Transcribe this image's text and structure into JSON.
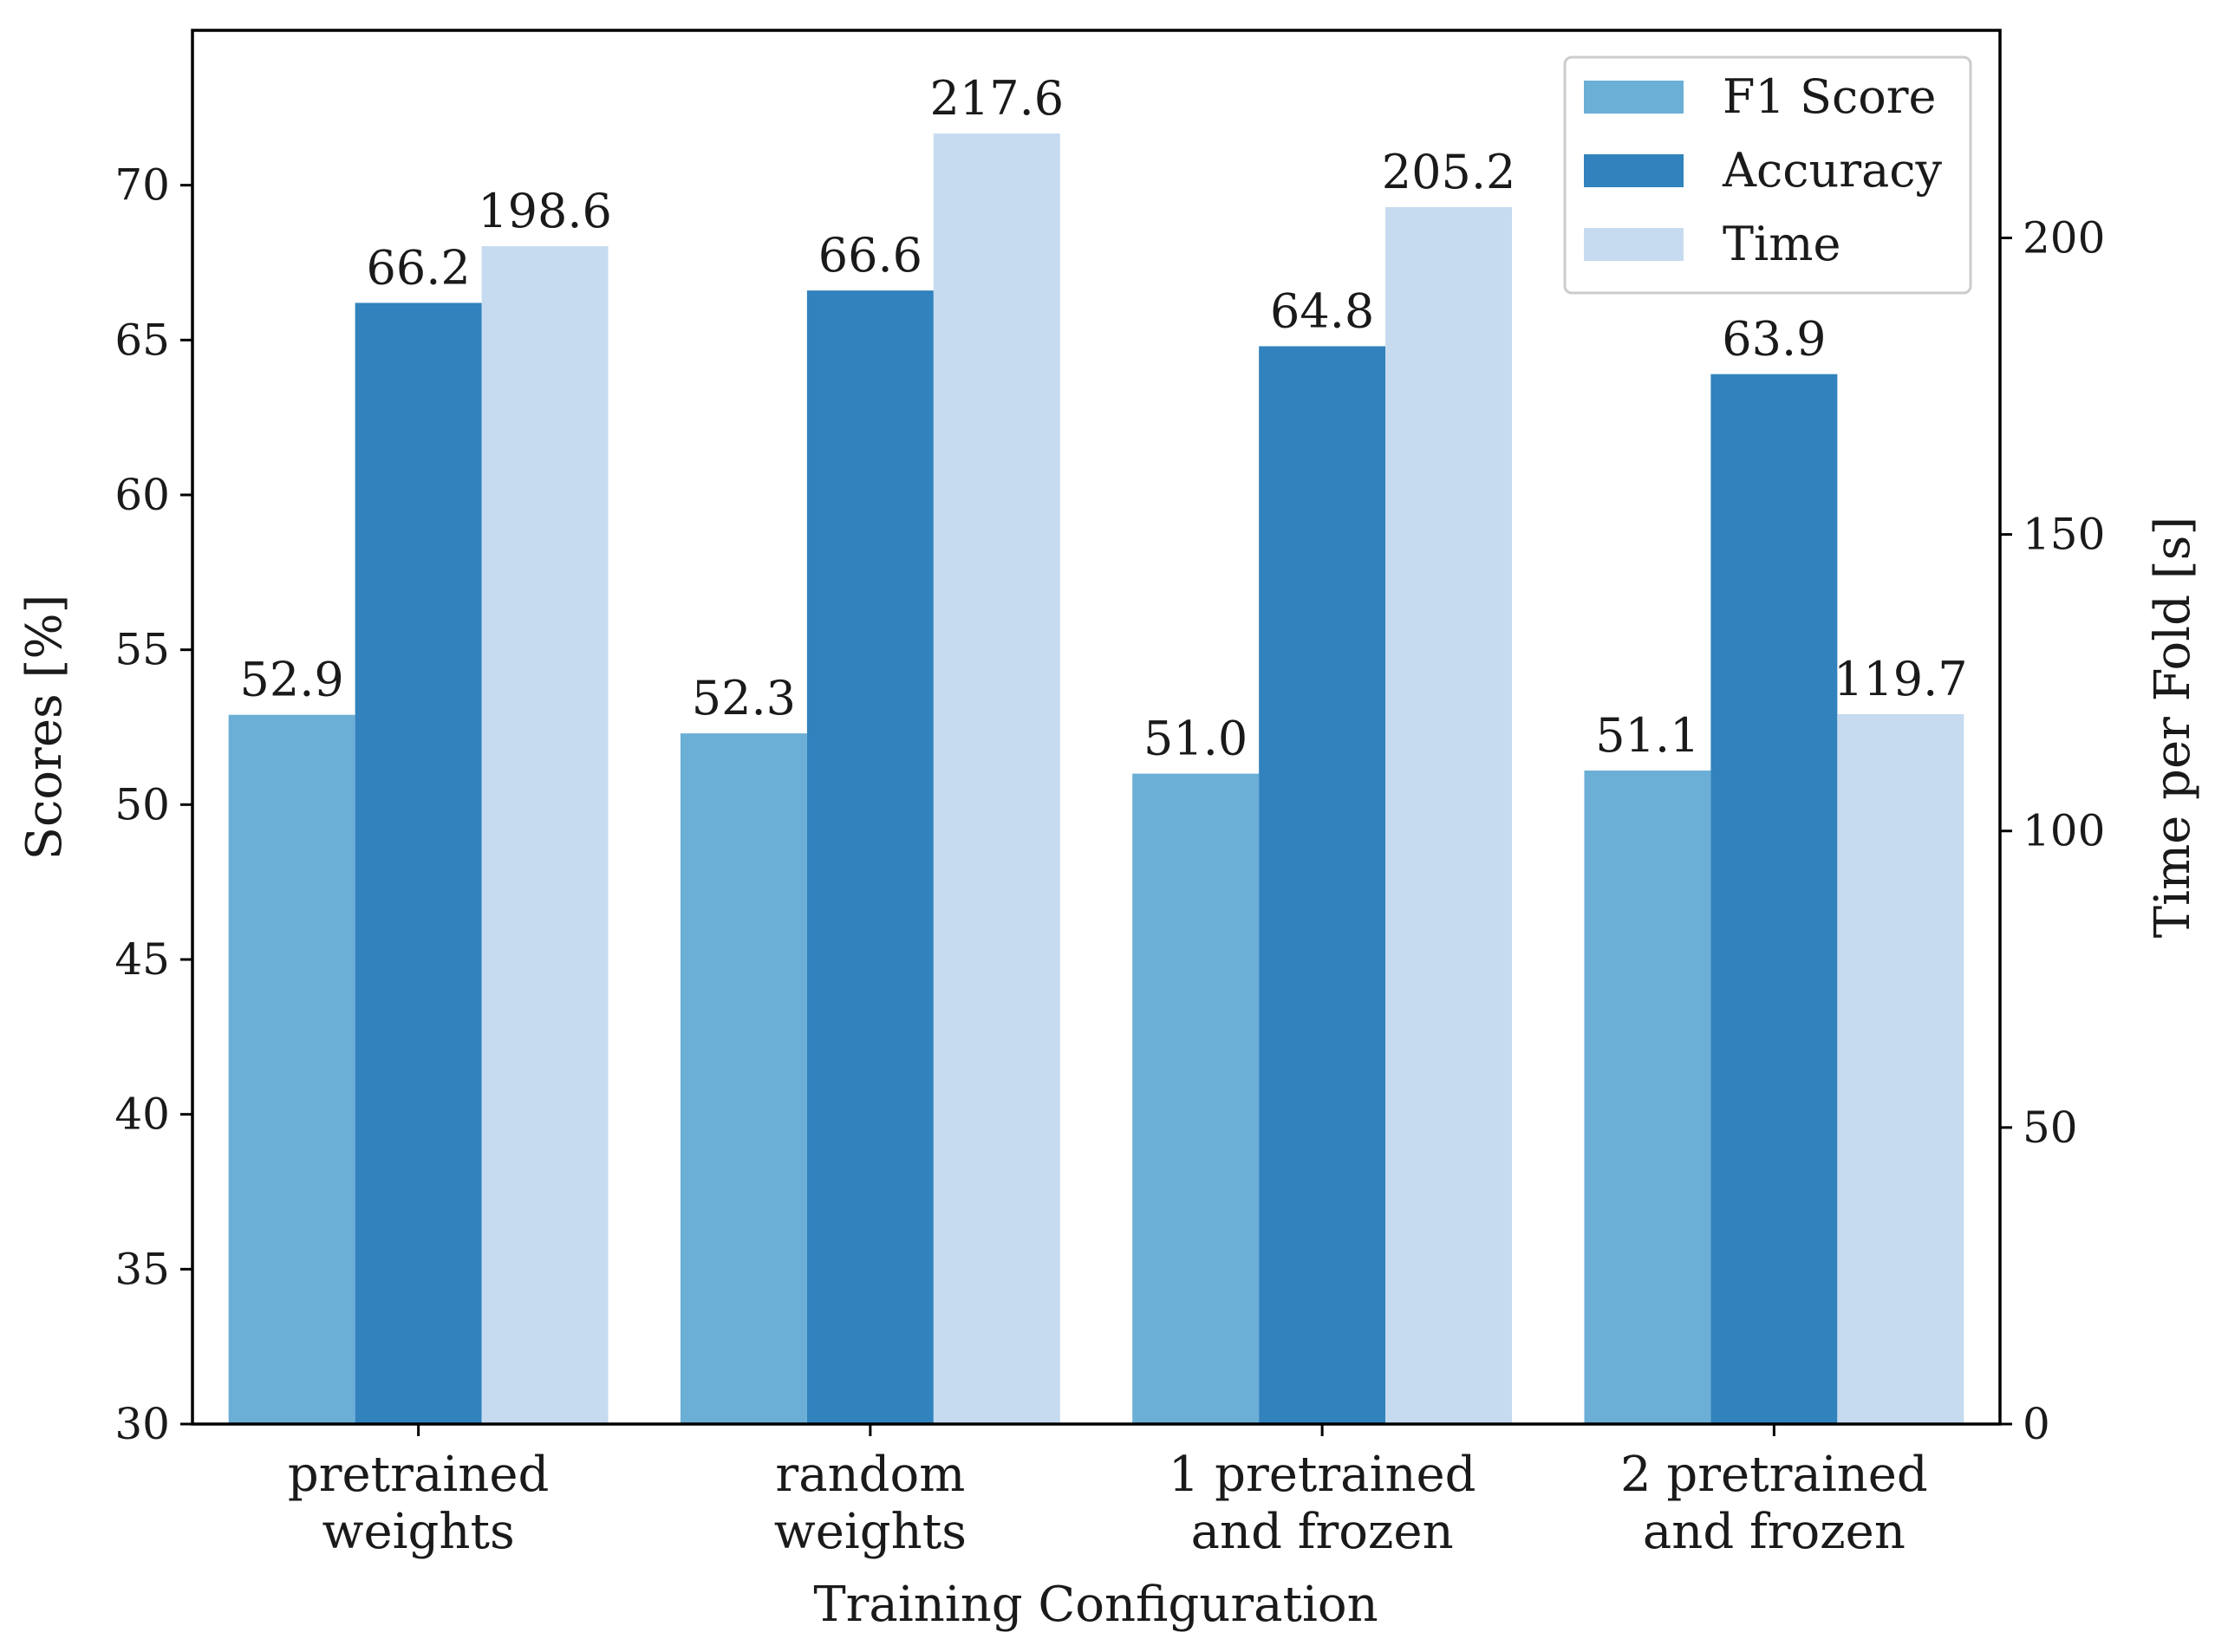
{
  "chart_data": {
    "type": "bar",
    "title": "",
    "xlabel": "Training Configuration",
    "ylabel": "Scores [%]",
    "y2label": "Time per Fold [s]",
    "ylim": [
      30,
      75
    ],
    "y2lim": [
      0,
      235
    ],
    "yticks": [
      30,
      35,
      40,
      45,
      50,
      55,
      60,
      65,
      70
    ],
    "y2ticks": [
      0,
      50,
      100,
      150,
      200
    ],
    "grid": false,
    "legend_position": "top-right",
    "categories": [
      [
        "pretrained",
        "weights"
      ],
      [
        "random",
        "weights"
      ],
      [
        "1 pretrained",
        "and frozen"
      ],
      [
        "2 pretrained",
        "and frozen"
      ]
    ],
    "series": [
      {
        "name": "F1 Score",
        "axis": "left",
        "color": "#6baed6",
        "values": [
          52.9,
          52.3,
          51.0,
          51.1
        ],
        "labels": [
          "52.9",
          "52.3",
          "51.0",
          "51.1"
        ]
      },
      {
        "name": "Accuracy",
        "axis": "left",
        "color": "#3182bd",
        "values": [
          66.2,
          66.6,
          64.8,
          63.9
        ],
        "labels": [
          "66.2",
          "66.6",
          "64.8",
          "63.9"
        ]
      },
      {
        "name": "Time",
        "axis": "right",
        "color": "#c6dbef",
        "values": [
          198.6,
          217.6,
          205.2,
          119.7
        ],
        "labels": [
          "198.6",
          "217.6",
          "205.2",
          "119.7"
        ]
      }
    ]
  }
}
